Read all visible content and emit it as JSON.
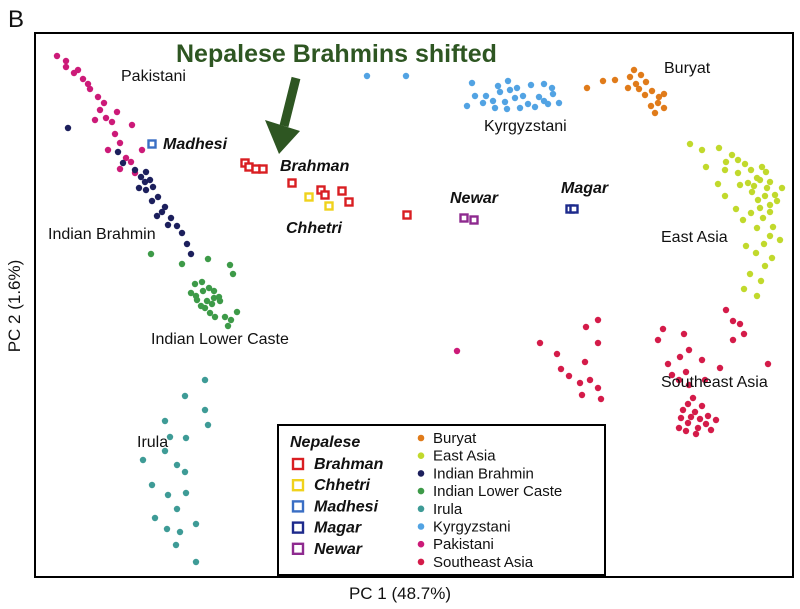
{
  "panel_label": "B",
  "chart_data": {
    "type": "scatter",
    "xlabel": "PC 1 (48.7%)",
    "ylabel": "PC 2 (1.6%)",
    "annotation": "Nepalese Brahmins shifted",
    "colors": {
      "Buryat": "#e07b1a",
      "East Asia": "#c1d92c",
      "Indian Brahmin": "#1c1f5c",
      "Indian Lower Caste": "#3d9a48",
      "Irula": "#3e9b96",
      "Kyrgyzstani": "#52a3e3",
      "Pakistani": "#cc1a78",
      "Southeast Asia": "#d41b49",
      "Brahman": "#d91e22",
      "Chhetri": "#f0d21c",
      "Madhesi": "#3a6ec4",
      "Magar": "#1d2a8c",
      "Newar": "#8e2a8f"
    },
    "group_labels": [
      "Pakistani",
      "Kyrgyzstani",
      "Buryat",
      "Indian Brahmin",
      "East Asia",
      "Indian Lower Caste",
      "Southeast Asia",
      "Irula"
    ],
    "nepalese_labels": [
      "Madhesi",
      "Brahman",
      "Chhetri",
      "Newar",
      "Magar"
    ],
    "legend": {
      "nepalese_title": "Nepalese",
      "nepalese": [
        "Brahman",
        "Chhetri",
        "Madhesi",
        "Magar",
        "Newar"
      ],
      "reference": [
        "Buryat",
        "East Asia",
        "Indian Brahmin",
        "Indian Lower Caste",
        "Irula",
        "Kyrgyzstani",
        "Pakistani",
        "Southeast Asia"
      ]
    },
    "series": [
      {
        "name": "Pakistani",
        "points": [
          [
            57,
            56
          ],
          [
            66,
            61
          ],
          [
            74,
            73
          ],
          [
            83,
            79
          ],
          [
            90,
            89
          ],
          [
            98,
            97
          ],
          [
            100,
            110
          ],
          [
            106,
            118
          ],
          [
            112,
            122
          ],
          [
            115,
            134
          ],
          [
            120,
            143
          ],
          [
            108,
            150
          ],
          [
            126,
            158
          ],
          [
            131,
            162
          ],
          [
            66,
            67
          ],
          [
            78,
            70
          ],
          [
            88,
            84
          ],
          [
            104,
            103
          ],
          [
            132,
            125
          ],
          [
            120,
            169
          ],
          [
            135,
            173
          ],
          [
            117,
            112
          ],
          [
            95,
            120
          ],
          [
            457,
            351
          ],
          [
            142,
            150
          ]
        ]
      },
      {
        "name": "Indian Brahmin",
        "points": [
          [
            68,
            128
          ],
          [
            118,
            152
          ],
          [
            123,
            163
          ],
          [
            135,
            170
          ],
          [
            141,
            177
          ],
          [
            146,
            172
          ],
          [
            150,
            180
          ],
          [
            153,
            187
          ],
          [
            146,
            190
          ],
          [
            152,
            201
          ],
          [
            158,
            197
          ],
          [
            162,
            212
          ],
          [
            165,
            207
          ],
          [
            157,
            216
          ],
          [
            171,
            218
          ],
          [
            168,
            225
          ],
          [
            177,
            226
          ],
          [
            182,
            233
          ],
          [
            187,
            244
          ],
          [
            191,
            254
          ],
          [
            145,
            182
          ],
          [
            139,
            188
          ]
        ]
      },
      {
        "name": "Indian Lower Caste",
        "points": [
          [
            151,
            254
          ],
          [
            182,
            264
          ],
          [
            208,
            259
          ],
          [
            230,
            265
          ],
          [
            233,
            274
          ],
          [
            195,
            284
          ],
          [
            202,
            282
          ],
          [
            191,
            293
          ],
          [
            196,
            296
          ],
          [
            203,
            291
          ],
          [
            209,
            288
          ],
          [
            214,
            291
          ],
          [
            219,
            297
          ],
          [
            197,
            300
          ],
          [
            207,
            301
          ],
          [
            212,
            304
          ],
          [
            220,
            301
          ],
          [
            205,
            308
          ],
          [
            210,
            313
          ],
          [
            215,
            317
          ],
          [
            225,
            317
          ],
          [
            231,
            320
          ],
          [
            237,
            312
          ],
          [
            228,
            326
          ],
          [
            214,
            298
          ],
          [
            201,
            306
          ]
        ]
      },
      {
        "name": "Irula",
        "points": [
          [
            205,
            380
          ],
          [
            185,
            396
          ],
          [
            205,
            410
          ],
          [
            208,
            425
          ],
          [
            165,
            421
          ],
          [
            186,
            438
          ],
          [
            165,
            451
          ],
          [
            177,
            465
          ],
          [
            185,
            472
          ],
          [
            143,
            460
          ],
          [
            152,
            485
          ],
          [
            186,
            493
          ],
          [
            168,
            495
          ],
          [
            177,
            509
          ],
          [
            155,
            518
          ],
          [
            196,
            524
          ],
          [
            167,
            529
          ],
          [
            180,
            532
          ],
          [
            176,
            545
          ],
          [
            196,
            562
          ],
          [
            170,
            437
          ]
        ]
      },
      {
        "name": "Kyrgyzstani",
        "points": [
          [
            367,
            76
          ],
          [
            406,
            76
          ],
          [
            472,
            83
          ],
          [
            498,
            86
          ],
          [
            508,
            81
          ],
          [
            517,
            88
          ],
          [
            523,
            96
          ],
          [
            531,
            85
          ],
          [
            544,
            84
          ],
          [
            553,
            94
          ],
          [
            544,
            101
          ],
          [
            528,
            104
          ],
          [
            515,
            98
          ],
          [
            505,
            102
          ],
          [
            493,
            101
          ],
          [
            486,
            96
          ],
          [
            500,
            92
          ],
          [
            539,
            97
          ],
          [
            548,
            104
          ],
          [
            559,
            103
          ],
          [
            535,
            107
          ],
          [
            520,
            108
          ],
          [
            507,
            109
          ],
          [
            483,
            103
          ],
          [
            475,
            96
          ],
          [
            467,
            106
          ],
          [
            510,
            90
          ],
          [
            495,
            108
          ],
          [
            552,
            88
          ]
        ]
      },
      {
        "name": "Buryat",
        "points": [
          [
            587,
            88
          ],
          [
            603,
            81
          ],
          [
            615,
            80
          ],
          [
            630,
            77
          ],
          [
            634,
            70
          ],
          [
            636,
            84
          ],
          [
            641,
            75
          ],
          [
            646,
            82
          ],
          [
            639,
            89
          ],
          [
            645,
            95
          ],
          [
            652,
            91
          ],
          [
            659,
            97
          ],
          [
            664,
            94
          ],
          [
            658,
            103
          ],
          [
            664,
            108
          ],
          [
            651,
            106
          ],
          [
            655,
            113
          ],
          [
            628,
            88
          ]
        ]
      },
      {
        "name": "East Asia",
        "points": [
          [
            690,
            144
          ],
          [
            702,
            150
          ],
          [
            719,
            148
          ],
          [
            732,
            155
          ],
          [
            738,
            160
          ],
          [
            726,
            162
          ],
          [
            745,
            164
          ],
          [
            751,
            170
          ],
          [
            738,
            173
          ],
          [
            757,
            178
          ],
          [
            766,
            172
          ],
          [
            760,
            180
          ],
          [
            748,
            183
          ],
          [
            754,
            186
          ],
          [
            770,
            182
          ],
          [
            767,
            188
          ],
          [
            775,
            195
          ],
          [
            765,
            196
          ],
          [
            752,
            192
          ],
          [
            740,
            185
          ],
          [
            758,
            200
          ],
          [
            770,
            205
          ],
          [
            777,
            201
          ],
          [
            760,
            208
          ],
          [
            751,
            213
          ],
          [
            770,
            212
          ],
          [
            743,
            220
          ],
          [
            763,
            218
          ],
          [
            757,
            228
          ],
          [
            770,
            236
          ],
          [
            780,
            240
          ],
          [
            764,
            244
          ],
          [
            746,
            246
          ],
          [
            756,
            253
          ],
          [
            772,
            258
          ],
          [
            765,
            266
          ],
          [
            750,
            274
          ],
          [
            761,
            281
          ],
          [
            744,
            289
          ],
          [
            757,
            296
          ],
          [
            718,
            184
          ],
          [
            725,
            196
          ],
          [
            736,
            209
          ],
          [
            782,
            188
          ],
          [
            773,
            227
          ],
          [
            706,
            167
          ],
          [
            725,
            170
          ],
          [
            762,
            167
          ]
        ]
      },
      {
        "name": "Southeast Asia",
        "points": [
          [
            586,
            327
          ],
          [
            598,
            320
          ],
          [
            598,
            343
          ],
          [
            585,
            362
          ],
          [
            561,
            369
          ],
          [
            569,
            376
          ],
          [
            580,
            383
          ],
          [
            590,
            380
          ],
          [
            598,
            388
          ],
          [
            582,
            395
          ],
          [
            601,
            399
          ],
          [
            540,
            343
          ],
          [
            557,
            354
          ],
          [
            658,
            340
          ],
          [
            663,
            329
          ],
          [
            684,
            334
          ],
          [
            689,
            350
          ],
          [
            680,
            357
          ],
          [
            668,
            364
          ],
          [
            672,
            375
          ],
          [
            686,
            372
          ],
          [
            702,
            360
          ],
          [
            720,
            368
          ],
          [
            705,
            380
          ],
          [
            689,
            385
          ],
          [
            679,
            380
          ],
          [
            726,
            310
          ],
          [
            733,
            321
          ],
          [
            740,
            324
          ],
          [
            744,
            334
          ],
          [
            733,
            340
          ],
          [
            768,
            364
          ],
          [
            683,
            410
          ],
          [
            688,
            404
          ],
          [
            695,
            412
          ],
          [
            700,
            419
          ],
          [
            706,
            424
          ],
          [
            711,
            430
          ],
          [
            698,
            428
          ],
          [
            688,
            423
          ],
          [
            681,
            418
          ],
          [
            679,
            428
          ],
          [
            686,
            431
          ],
          [
            702,
            406
          ],
          [
            693,
            398
          ],
          [
            691,
            417
          ],
          [
            708,
            416
          ],
          [
            696,
            434
          ],
          [
            716,
            420
          ]
        ]
      }
    ],
    "nepalese_series": [
      {
        "name": "Brahman",
        "points": [
          [
            245,
            163
          ],
          [
            249,
            167
          ],
          [
            256,
            169
          ],
          [
            263,
            169
          ],
          [
            292,
            183
          ],
          [
            321,
            190
          ],
          [
            325,
            195
          ],
          [
            342,
            191
          ],
          [
            349,
            202
          ],
          [
            407,
            215
          ]
        ]
      },
      {
        "name": "Chhetri",
        "points": [
          [
            309,
            197
          ],
          [
            329,
            206
          ]
        ]
      },
      {
        "name": "Madhesi",
        "points": [
          [
            152,
            144
          ]
        ]
      },
      {
        "name": "Magar",
        "points": [
          [
            570,
            209
          ],
          [
            574,
            209
          ]
        ]
      },
      {
        "name": "Newar",
        "points": [
          [
            464,
            218
          ],
          [
            474,
            220
          ]
        ]
      }
    ]
  }
}
